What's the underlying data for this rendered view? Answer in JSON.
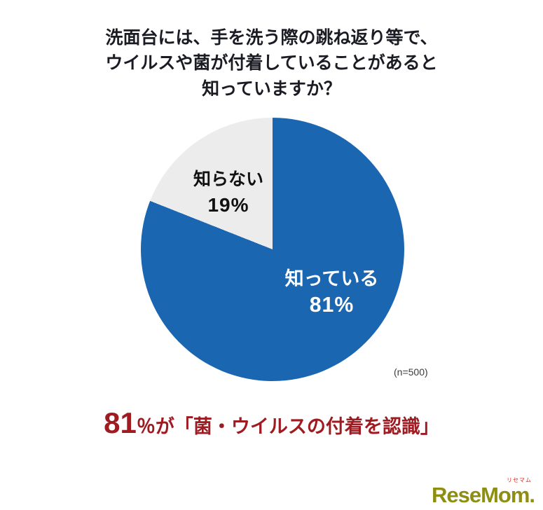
{
  "title": {
    "line1": "洗面台には、手を洗う際の跳ね返り等で、",
    "line2": "ウイルスや菌が付着していることがあると",
    "line3": "知っていますか？"
  },
  "chart_data": {
    "type": "pie",
    "title": "洗面台には、手を洗う際の跳ね返り等で、ウイルスや菌が付着していることがあると知っていますか？",
    "labels": [
      "知っている",
      "知らない"
    ],
    "values": [
      81,
      19
    ],
    "slice_label_values": [
      "81%",
      "19%"
    ],
    "colors": [
      "#1b66b1",
      "#ececec"
    ],
    "start_angle_deg": 0,
    "direction": "clockwise",
    "legend": "none",
    "note": "(n=500)"
  },
  "caption": {
    "big": "81",
    "rest": "％が「菌・ウイルスの付着を認識」"
  },
  "logo": {
    "ruby": "リセマム",
    "text": "ReseMom."
  }
}
